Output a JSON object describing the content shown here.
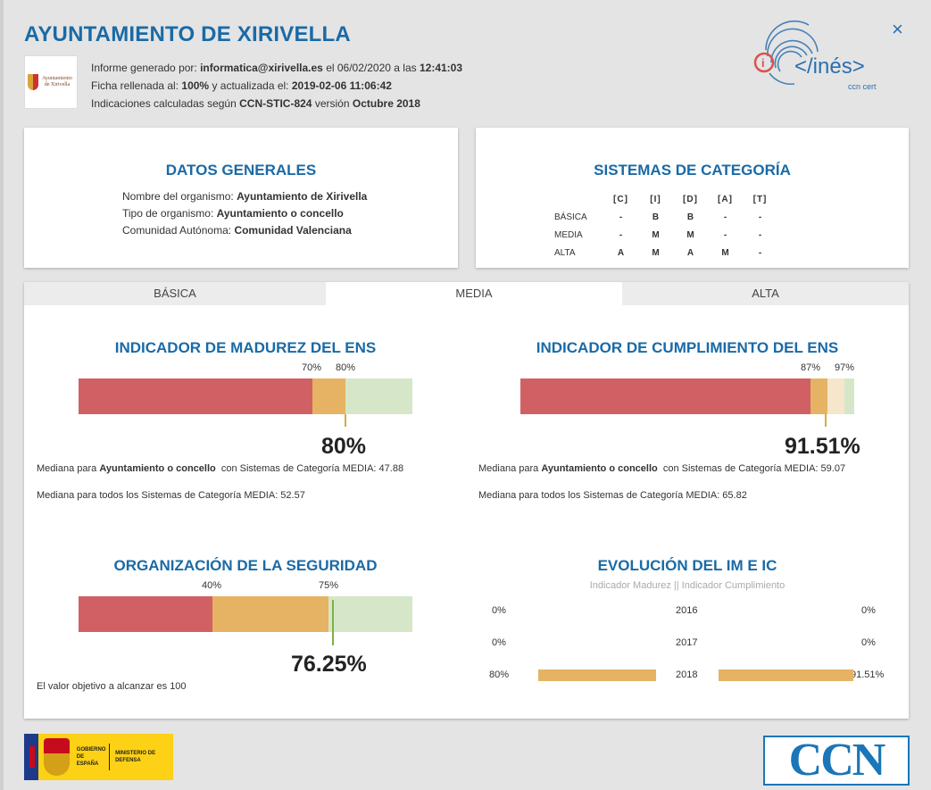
{
  "header": {
    "title": "AYUNTAMIENTO DE XIRIVELLA",
    "close_icon": "×",
    "logo_text": "Ayuntamiento de Xirivella",
    "ines_logo_text": "</inés>",
    "ines_sub": "ccn cert"
  },
  "meta": {
    "line1_prefix": "Informe generado por:",
    "user": "informatica@xirivella.es",
    "line1_mid": "el 06/02/2020  a las",
    "time": "12:41:03",
    "line2_prefix": "Ficha rellenada al:",
    "filled_pct": "100%",
    "line2_mid": "y actualizada el:",
    "updated": "2019-02-06 11:06:42",
    "line3_prefix": "Indicaciones calculadas según",
    "standard": "CCN-STIC-824",
    "line3_mid": "versión",
    "version": "Octubre 2018"
  },
  "datos_generales": {
    "title": "DATOS GENERALES",
    "rows": [
      {
        "label": "Nombre del organismo:",
        "value": "Ayuntamiento de Xirivella"
      },
      {
        "label": "Tipo de organismo:",
        "value": "Ayuntamiento o concello"
      },
      {
        "label": "Comunidad Autónoma:",
        "value": "Comunidad Valenciana"
      }
    ]
  },
  "sistemas": {
    "title": "SISTEMAS DE CATEGORÍA",
    "headers": [
      "[C]",
      "[I]",
      "[D]",
      "[A]",
      "[T]"
    ],
    "rows": [
      {
        "level": "BÁSICA",
        "values": [
          "-",
          "B",
          "B",
          "-",
          "-"
        ]
      },
      {
        "level": "MEDIA",
        "values": [
          "-",
          "M",
          "M",
          "-",
          "-"
        ]
      },
      {
        "level": "ALTA",
        "values": [
          "A",
          "M",
          "A",
          "M",
          "-"
        ]
      }
    ]
  },
  "tabs": [
    {
      "label": "BÁSICA",
      "active": false
    },
    {
      "label": "MEDIA",
      "active": true
    },
    {
      "label": "ALTA",
      "active": false
    }
  ],
  "madurez": {
    "title": "INDICADOR DE MADUREZ DEL ENS",
    "threshold1": "70%",
    "threshold2": "80%",
    "value": 80,
    "value_label": "80%",
    "median_org_prefix": "Mediana para",
    "median_org_type": "Ayuntamiento o concello",
    "median_org_suffix": "con Sistemas de Categoría MEDIA: 47.88",
    "median_all": "Mediana para todos los Sistemas de Categoría MEDIA: 52.57"
  },
  "cumplimiento": {
    "title": "INDICADOR DE CUMPLIMIENTO DEL ENS",
    "threshold1": "87%",
    "threshold2": "97%",
    "value": 91.51,
    "value_label": "91.51%",
    "median_org_prefix": "Mediana para",
    "median_org_type": "Ayuntamiento o concello",
    "median_org_suffix": "con Sistemas de Categoría MEDIA: 59.07",
    "median_all": "Mediana para todos los Sistemas de Categoría MEDIA: 65.82"
  },
  "organizacion": {
    "title": "ORGANIZACIÓN DE LA SEGURIDAD",
    "threshold1": "40%",
    "threshold2": "75%",
    "value": 76.25,
    "value_label": "76.25%",
    "note": "El valor objetivo a alcanzar es 100"
  },
  "evolucion": {
    "title": "EVOLUCIÓN DEL IM E IC",
    "subtitle": "Indicador Madurez  ||  Indicador Cumplimiento",
    "rows": [
      {
        "year": "2016",
        "im_label": "0%",
        "im": 0,
        "ic_label": "0%",
        "ic": 0
      },
      {
        "year": "2017",
        "im_label": "0%",
        "im": 0,
        "ic_label": "0%",
        "ic": 0
      },
      {
        "year": "2018",
        "im_label": "80%",
        "im": 80,
        "ic_label": "91.51%",
        "ic": 91.51
      }
    ]
  },
  "footer": {
    "gobierno": "GOBIERNO DE ESPAÑA",
    "ministerio": "MINISTERIO DE DEFENSA",
    "ccn": "CCN"
  },
  "colors": {
    "accent": "#1a6aa6",
    "red": "#d16064",
    "orange": "#e5b363",
    "green": "#d5e7c8"
  }
}
